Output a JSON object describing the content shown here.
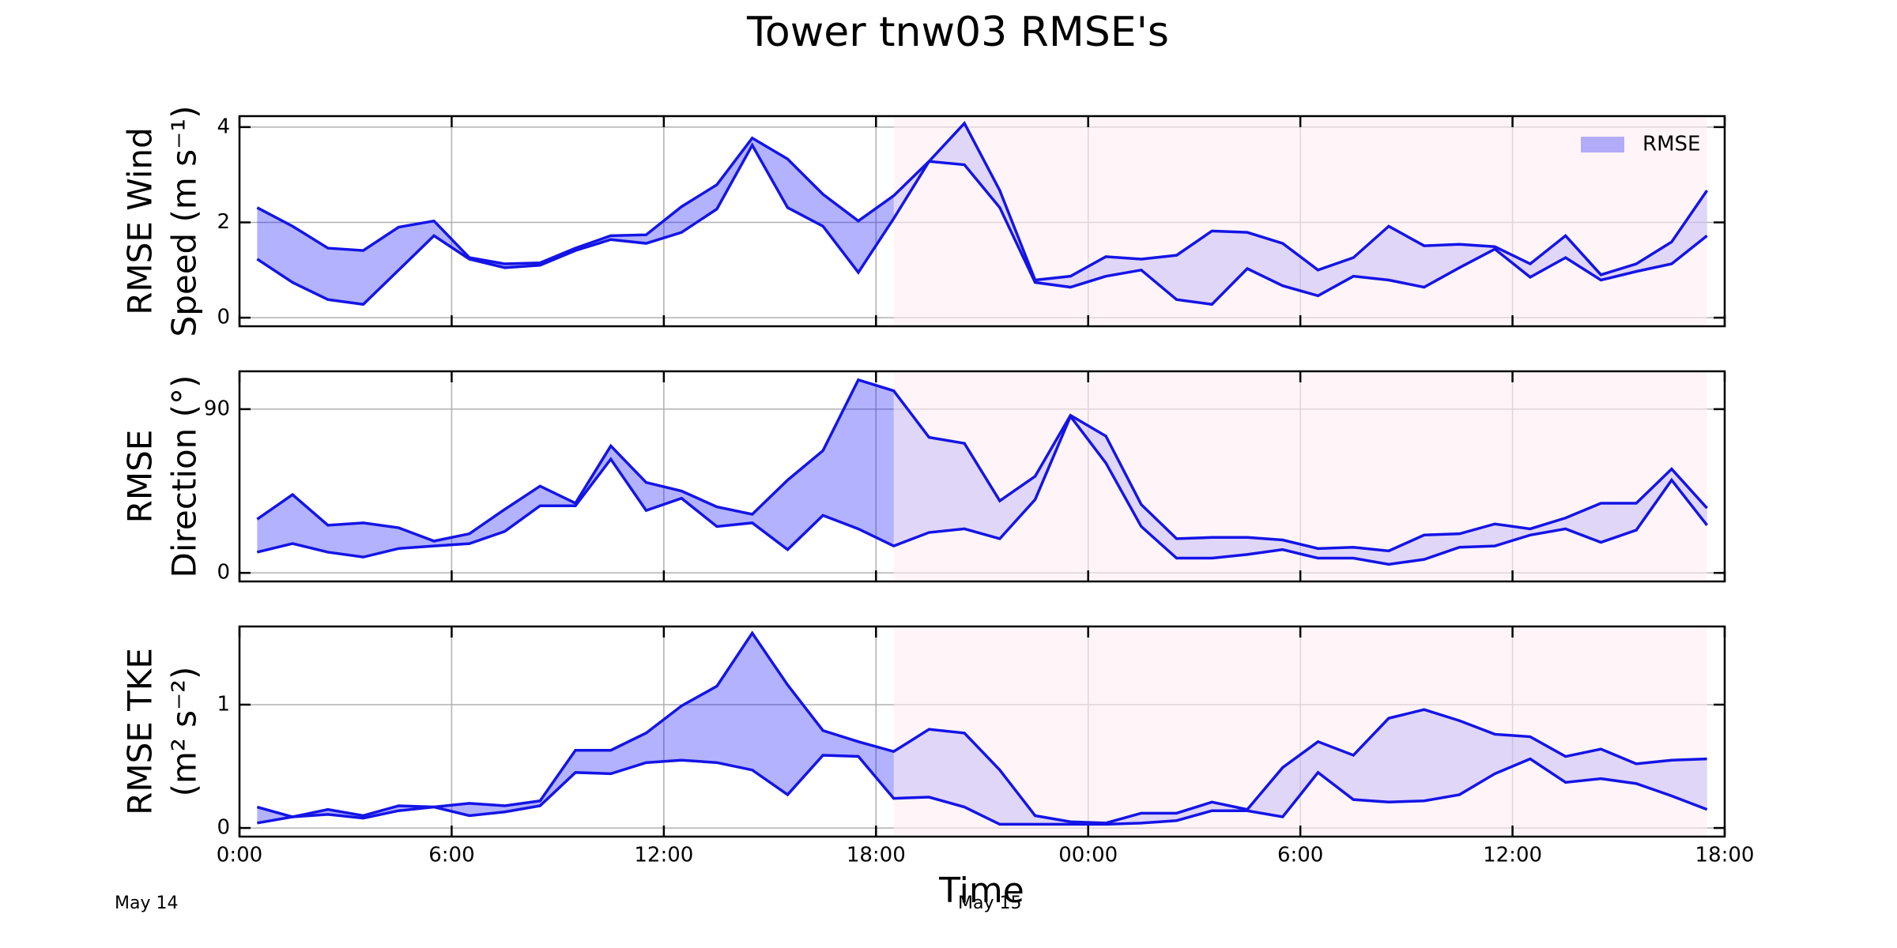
{
  "figure": {
    "title": "Tower tnw03 RMSE's",
    "xlabel": "Time",
    "date_labels": [
      "May 14",
      "May 15"
    ]
  },
  "chart_data": [
    {
      "type": "band",
      "ylabel": [
        "RMSE Wind",
        "Speed (m s⁻¹)"
      ],
      "xlim": [
        0,
        42
      ],
      "ylim": [
        -0.18,
        4.23
      ],
      "yticks": [
        0,
        2,
        4
      ],
      "grid": true,
      "legend": "upper right",
      "shaded_span": [
        18.5,
        41.5
      ],
      "shade_color": "#ffeef4",
      "x": [
        0.5,
        1.5,
        2.5,
        3.5,
        4.5,
        5.5,
        6.5,
        7.5,
        8.5,
        9.5,
        10.5,
        11.5,
        12.5,
        13.5,
        14.5,
        15.5,
        16.5,
        17.5,
        18.5,
        19.5,
        20.5,
        21.5,
        22.5,
        23.5,
        24.5,
        25.5,
        26.5,
        27.5,
        28.5,
        29.5,
        30.5,
        31.5,
        32.5,
        33.5,
        34.5,
        35.5,
        36.5,
        37.5,
        38.5,
        39.5,
        40.5,
        41.5
      ],
      "series": [
        {
          "name": "RMSE",
          "color": "#0000ff",
          "line_color": "#1414e6",
          "upper": [
            2.31,
            1.92,
            1.46,
            1.41,
            1.9,
            2.03,
            1.26,
            1.13,
            1.15,
            1.46,
            1.72,
            1.74,
            2.33,
            2.79,
            3.77,
            3.33,
            2.59,
            2.03,
            2.56,
            3.28,
            4.08,
            2.67,
            0.79,
            0.87,
            1.28,
            1.23,
            1.31,
            1.82,
            1.79,
            1.56,
            1.0,
            1.26,
            1.92,
            1.51,
            1.54,
            1.49,
            1.13,
            1.72,
            0.9,
            1.13,
            1.59,
            2.67
          ],
          "lower": [
            1.23,
            0.74,
            0.38,
            0.28,
            1.0,
            1.72,
            1.23,
            1.05,
            1.1,
            1.41,
            1.64,
            1.56,
            1.79,
            2.28,
            3.62,
            2.31,
            1.92,
            0.95,
            2.08,
            3.28,
            3.21,
            2.31,
            0.74,
            0.64,
            0.87,
            1.0,
            0.38,
            0.28,
            1.03,
            0.67,
            0.46,
            0.87,
            0.79,
            0.64,
            1.05,
            1.44,
            0.85,
            1.26,
            0.79,
            0.97,
            1.13,
            1.72
          ]
        }
      ]
    },
    {
      "type": "band",
      "ylabel": [
        "RMSE",
        "Direction (°)"
      ],
      "xlim": [
        0,
        42
      ],
      "ylim": [
        -4.7,
        110.8
      ],
      "yticks": [
        0,
        90
      ],
      "grid": true,
      "shaded_span": [
        18.5,
        41.5
      ],
      "shade_color": "#ffeef4",
      "x": [
        0.5,
        1.5,
        2.5,
        3.5,
        4.5,
        5.5,
        6.5,
        7.5,
        8.5,
        9.5,
        10.5,
        11.5,
        12.5,
        13.5,
        14.5,
        15.5,
        16.5,
        17.5,
        18.5,
        19.5,
        20.5,
        21.5,
        22.5,
        23.5,
        24.5,
        25.5,
        26.5,
        27.5,
        28.5,
        29.5,
        30.5,
        31.5,
        32.5,
        33.5,
        34.5,
        35.5,
        36.5,
        37.5,
        38.5,
        39.5,
        40.5,
        41.5
      ],
      "series": [
        {
          "color": "#0000ff",
          "line_color": "#1414e6",
          "upper": [
            29.5,
            43.0,
            26.2,
            27.5,
            24.8,
            17.5,
            21.5,
            34.9,
            47.7,
            38.3,
            69.8,
            49.7,
            45.0,
            36.3,
            32.2,
            51.0,
            67.2,
            106.1,
            100.1,
            74.5,
            71.2,
            39.6,
            53.1,
            86.6,
            75.2,
            37.6,
            18.8,
            19.5,
            19.5,
            18.1,
            13.4,
            14.1,
            12.1,
            20.8,
            21.5,
            26.9,
            24.2,
            30.2,
            38.3,
            38.3,
            57.1,
            35.6
          ],
          "lower": [
            11.4,
            16.1,
            11.4,
            8.7,
            13.4,
            14.8,
            16.1,
            22.8,
            36.9,
            36.9,
            62.5,
            34.3,
            41.0,
            25.5,
            27.5,
            12.8,
            31.6,
            24.2,
            14.8,
            22.2,
            24.2,
            18.8,
            40.3,
            86.0,
            60.4,
            25.5,
            8.1,
            8.1,
            10.1,
            12.8,
            8.1,
            8.1,
            4.7,
            7.4,
            14.1,
            14.8,
            20.8,
            24.2,
            16.8,
            23.5,
            51.0,
            26.2
          ]
        }
      ]
    },
    {
      "type": "band",
      "ylabel": [
        "RMSE TKE",
        "(m² s⁻²)"
      ],
      "xlim": [
        0,
        42
      ],
      "ylim": [
        -0.07,
        1.634
      ],
      "yticks": [
        0,
        1
      ],
      "grid": true,
      "shaded_span": [
        18.5,
        41.5
      ],
      "shade_color": "#ffeef4",
      "xticks": [
        {
          "value": 0,
          "label": "0:00"
        },
        {
          "value": 6,
          "label": "6:00"
        },
        {
          "value": 12,
          "label": "12:00"
        },
        {
          "value": 18,
          "label": "18:00"
        },
        {
          "value": 24,
          "label": "00:00"
        },
        {
          "value": 30,
          "label": "6:00"
        },
        {
          "value": 36,
          "label": "12:00"
        },
        {
          "value": 42,
          "label": "18:00"
        }
      ],
      "x": [
        0.5,
        1.5,
        2.5,
        3.5,
        4.5,
        5.5,
        6.5,
        7.5,
        8.5,
        9.5,
        10.5,
        11.5,
        12.5,
        13.5,
        14.5,
        15.5,
        16.5,
        17.5,
        18.5,
        19.5,
        20.5,
        21.5,
        22.5,
        23.5,
        24.5,
        25.5,
        26.5,
        27.5,
        28.5,
        29.5,
        30.5,
        31.5,
        32.5,
        33.5,
        34.5,
        35.5,
        36.5,
        37.5,
        38.5,
        39.5,
        40.5,
        41.5
      ],
      "series": [
        {
          "color": "#0000ff",
          "line_color": "#1414e6",
          "upper": [
            0.17,
            0.09,
            0.15,
            0.1,
            0.18,
            0.17,
            0.2,
            0.18,
            0.22,
            0.63,
            0.63,
            0.77,
            0.99,
            1.15,
            1.58,
            1.16,
            0.79,
            0.7,
            0.62,
            0.8,
            0.77,
            0.47,
            0.1,
            0.05,
            0.04,
            0.12,
            0.12,
            0.21,
            0.15,
            0.49,
            0.7,
            0.59,
            0.89,
            0.96,
            0.87,
            0.76,
            0.74,
            0.58,
            0.64,
            0.52,
            0.55,
            0.56
          ],
          "lower": [
            0.04,
            0.09,
            0.11,
            0.08,
            0.14,
            0.17,
            0.1,
            0.13,
            0.18,
            0.45,
            0.44,
            0.53,
            0.55,
            0.53,
            0.47,
            0.27,
            0.59,
            0.58,
            0.24,
            0.25,
            0.17,
            0.03,
            0.03,
            0.03,
            0.03,
            0.04,
            0.06,
            0.14,
            0.14,
            0.09,
            0.45,
            0.23,
            0.21,
            0.22,
            0.27,
            0.44,
            0.56,
            0.37,
            0.4,
            0.36,
            0.26,
            0.15
          ]
        }
      ]
    }
  ]
}
